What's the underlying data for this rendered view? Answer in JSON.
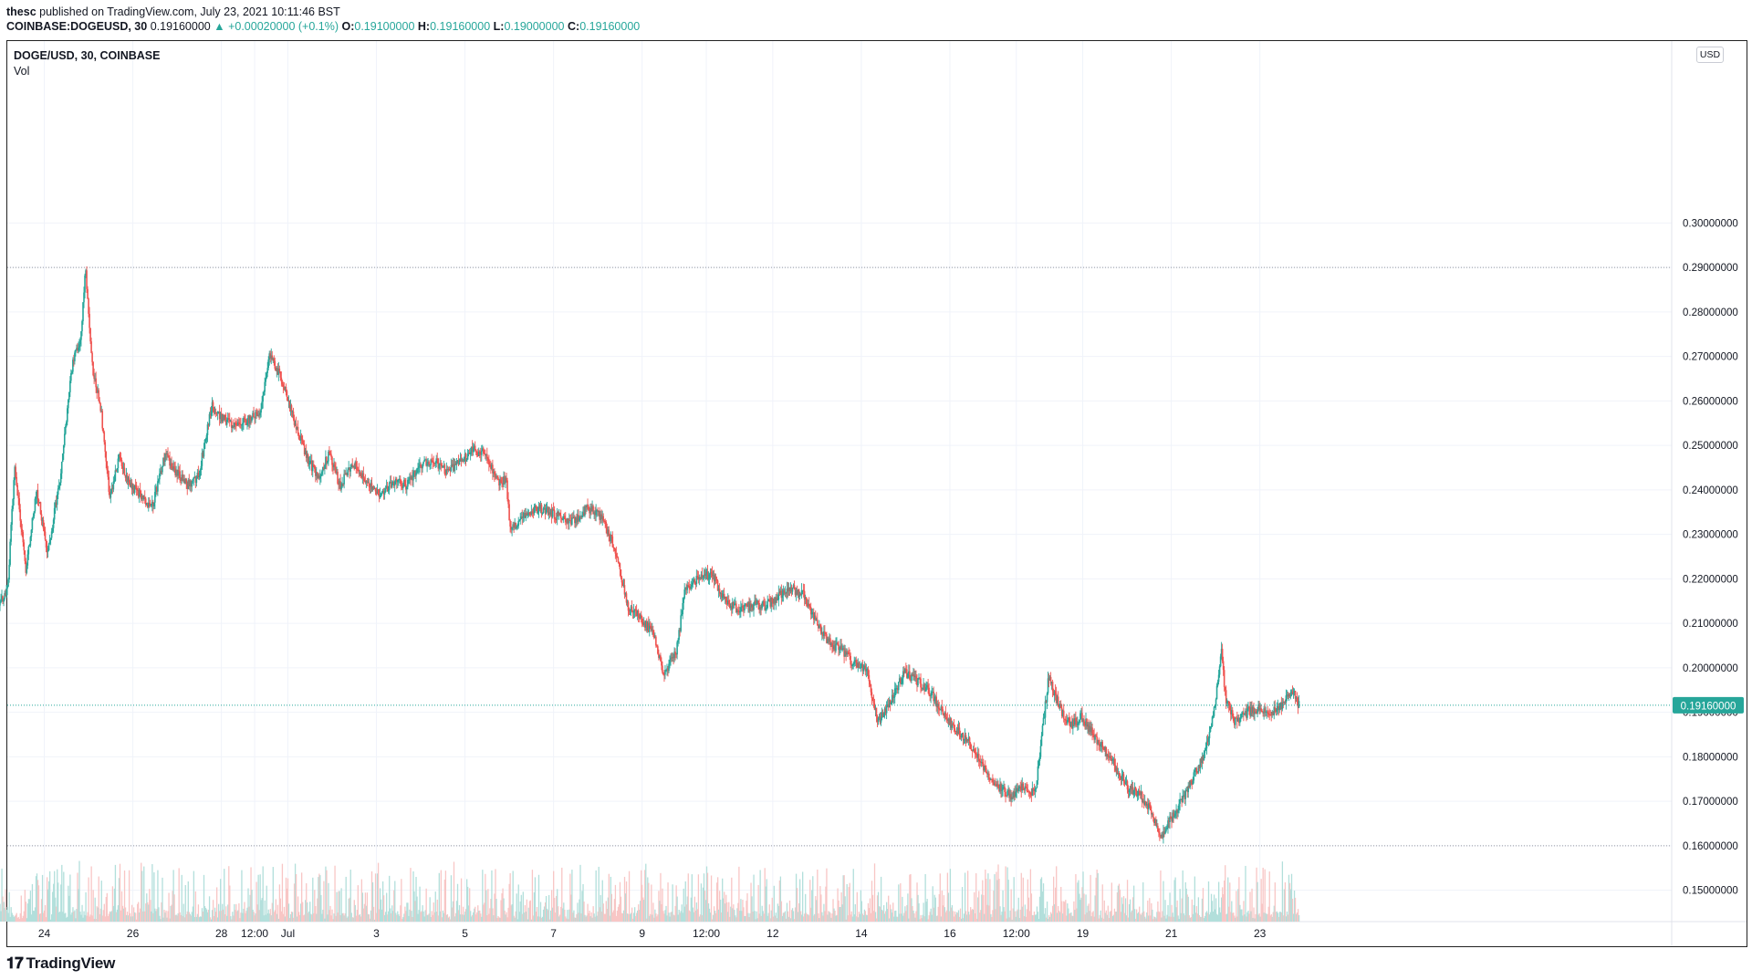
{
  "header": {
    "author": "thesc",
    "published_text": "published on TradingView.com, July 23, 2021 10:11:46 BST",
    "symbol_line": "COINBASE:DOGEUSD, 30",
    "last_value": "0.19160000",
    "change": "▲ +0.00020000 (+0.1%)",
    "open_label": "O:",
    "open": "0.19100000",
    "high_label": "H:",
    "high": "0.19160000",
    "low_label": "L:",
    "low": "0.19000000",
    "close_label": "C:",
    "close": "0.19160000"
  },
  "legend": {
    "symbol": "DOGE/USD, 30, COINBASE",
    "volume": "Vol"
  },
  "currency": "USD",
  "brand": "TradingView",
  "colors": {
    "up": "#26a69a",
    "down": "#ef5350",
    "up_vol": "#b2dfdb",
    "down_vol": "#f8c6c5",
    "grid": "#f0f3fa"
  },
  "chart_data": {
    "type": "candlestick",
    "title": "DOGE/USD, 30, COINBASE",
    "interval": "30 min",
    "ylim": [
      0.145,
      0.3035
    ],
    "y_ticks": [
      "0.30000000",
      "0.29000000",
      "0.28000000",
      "0.27000000",
      "0.26000000",
      "0.25000000",
      "0.24000000",
      "0.23000000",
      "0.22000000",
      "0.21000000",
      "0.20000000",
      "0.19000000",
      "0.18000000",
      "0.17000000",
      "0.16000000",
      "0.15000000"
    ],
    "x_ticks": [
      {
        "label": "24",
        "t": 1.0
      },
      {
        "label": "26",
        "t": 3.0
      },
      {
        "label": "28",
        "t": 5.0
      },
      {
        "label": "12:00",
        "t": 5.75
      },
      {
        "label": "Jul",
        "t": 6.5
      },
      {
        "label": "3",
        "t": 8.5
      },
      {
        "label": "5",
        "t": 10.5
      },
      {
        "label": "7",
        "t": 12.5
      },
      {
        "label": "9",
        "t": 14.5
      },
      {
        "label": "12:00",
        "t": 15.95
      },
      {
        "label": "12",
        "t": 17.45
      },
      {
        "label": "14",
        "t": 19.45
      },
      {
        "label": "16",
        "t": 21.45
      },
      {
        "label": "12:00",
        "t": 22.95
      },
      {
        "label": "19",
        "t": 24.45
      },
      {
        "label": "21",
        "t": 26.45
      },
      {
        "label": "23",
        "t": 28.45
      }
    ],
    "t_range": [
      0.0,
      29.55
    ],
    "last_price": 0.1916,
    "last_price_label": "0.19160000",
    "reference_lines": [
      0.29,
      0.16
    ],
    "path": [
      [
        0.0,
        0.214
      ],
      [
        0.2,
        0.218
      ],
      [
        0.35,
        0.246
      ],
      [
        0.6,
        0.222
      ],
      [
        0.85,
        0.24
      ],
      [
        1.1,
        0.226
      ],
      [
        1.4,
        0.244
      ],
      [
        1.65,
        0.268
      ],
      [
        1.85,
        0.275
      ],
      [
        1.95,
        0.29
      ],
      [
        2.1,
        0.268
      ],
      [
        2.3,
        0.258
      ],
      [
        2.5,
        0.238
      ],
      [
        2.7,
        0.247
      ],
      [
        2.95,
        0.241
      ],
      [
        3.2,
        0.239
      ],
      [
        3.45,
        0.236
      ],
      [
        3.75,
        0.248
      ],
      [
        4.0,
        0.244
      ],
      [
        4.25,
        0.241
      ],
      [
        4.5,
        0.243
      ],
      [
        4.8,
        0.259
      ],
      [
        5.05,
        0.256
      ],
      [
        5.35,
        0.254
      ],
      [
        5.65,
        0.256
      ],
      [
        5.9,
        0.258
      ],
      [
        6.1,
        0.27
      ],
      [
        6.35,
        0.266
      ],
      [
        6.65,
        0.256
      ],
      [
        6.95,
        0.247
      ],
      [
        7.2,
        0.243
      ],
      [
        7.45,
        0.248
      ],
      [
        7.7,
        0.241
      ],
      [
        8.0,
        0.246
      ],
      [
        8.3,
        0.242
      ],
      [
        8.6,
        0.239
      ],
      [
        8.9,
        0.242
      ],
      [
        9.2,
        0.241
      ],
      [
        9.5,
        0.245
      ],
      [
        9.8,
        0.247
      ],
      [
        10.1,
        0.244
      ],
      [
        10.4,
        0.246
      ],
      [
        10.7,
        0.249
      ],
      [
        11.0,
        0.248
      ],
      [
        11.25,
        0.242
      ],
      [
        11.45,
        0.242
      ],
      [
        11.55,
        0.231
      ],
      [
        11.9,
        0.235
      ],
      [
        12.3,
        0.236
      ],
      [
        12.6,
        0.234
      ],
      [
        12.95,
        0.233
      ],
      [
        13.3,
        0.236
      ],
      [
        13.6,
        0.234
      ],
      [
        13.9,
        0.227
      ],
      [
        14.2,
        0.214
      ],
      [
        14.5,
        0.211
      ],
      [
        14.8,
        0.207
      ],
      [
        15.0,
        0.198
      ],
      [
        15.3,
        0.204
      ],
      [
        15.5,
        0.218
      ],
      [
        15.8,
        0.22
      ],
      [
        16.1,
        0.221
      ],
      [
        16.4,
        0.215
      ],
      [
        16.7,
        0.213
      ],
      [
        17.0,
        0.214
      ],
      [
        17.3,
        0.214
      ],
      [
        17.6,
        0.216
      ],
      [
        17.9,
        0.218
      ],
      [
        18.2,
        0.216
      ],
      [
        18.45,
        0.21
      ],
      [
        18.7,
        0.206
      ],
      [
        19.0,
        0.204
      ],
      [
        19.3,
        0.201
      ],
      [
        19.6,
        0.199
      ],
      [
        19.85,
        0.188
      ],
      [
        20.15,
        0.193
      ],
      [
        20.45,
        0.199
      ],
      [
        20.75,
        0.197
      ],
      [
        21.0,
        0.195
      ],
      [
        21.3,
        0.19
      ],
      [
        21.6,
        0.186
      ],
      [
        21.85,
        0.184
      ],
      [
        22.1,
        0.18
      ],
      [
        22.35,
        0.176
      ],
      [
        22.6,
        0.173
      ],
      [
        22.85,
        0.171
      ],
      [
        23.1,
        0.173
      ],
      [
        23.4,
        0.172
      ],
      [
        23.7,
        0.198
      ],
      [
        23.95,
        0.191
      ],
      [
        24.2,
        0.187
      ],
      [
        24.45,
        0.189
      ],
      [
        24.7,
        0.185
      ],
      [
        24.95,
        0.182
      ],
      [
        25.2,
        0.178
      ],
      [
        25.5,
        0.173
      ],
      [
        25.8,
        0.171
      ],
      [
        26.0,
        0.168
      ],
      [
        26.25,
        0.162
      ],
      [
        26.45,
        0.166
      ],
      [
        26.7,
        0.17
      ],
      [
        26.95,
        0.175
      ],
      [
        27.2,
        0.18
      ],
      [
        27.45,
        0.191
      ],
      [
        27.6,
        0.204
      ],
      [
        27.7,
        0.193
      ],
      [
        27.9,
        0.188
      ],
      [
        28.2,
        0.19
      ],
      [
        28.5,
        0.191
      ],
      [
        28.75,
        0.19
      ],
      [
        29.0,
        0.192
      ],
      [
        29.2,
        0.195
      ],
      [
        29.35,
        0.1916
      ]
    ]
  }
}
